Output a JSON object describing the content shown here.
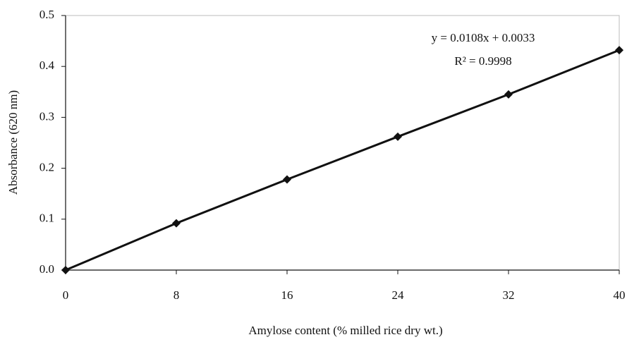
{
  "chart_data": {
    "type": "line",
    "x_label": "Amylose content  (% milled rice dry wt.)",
    "y_label": "Absorbance  (620 nm)",
    "annotations": [
      "y = 0.0108x + 0.0033",
      "R² = 0.9998"
    ],
    "x": [
      0,
      8,
      16,
      24,
      32,
      40
    ],
    "series": [
      {
        "name": "Absorbance",
        "color": "#111111",
        "values": [
          0,
          0.092,
          0.178,
          0.262,
          0.345,
          0.432
        ]
      }
    ],
    "xlim": [
      0,
      40
    ],
    "xticks": [
      0,
      8,
      16,
      24,
      32,
      40
    ],
    "ylim": [
      0,
      0.5
    ],
    "yticks": [
      {
        "value": 0,
        "label": "0.0"
      },
      0.1,
      0.2,
      0.3,
      0.4,
      0.5
    ],
    "grid": false
  }
}
